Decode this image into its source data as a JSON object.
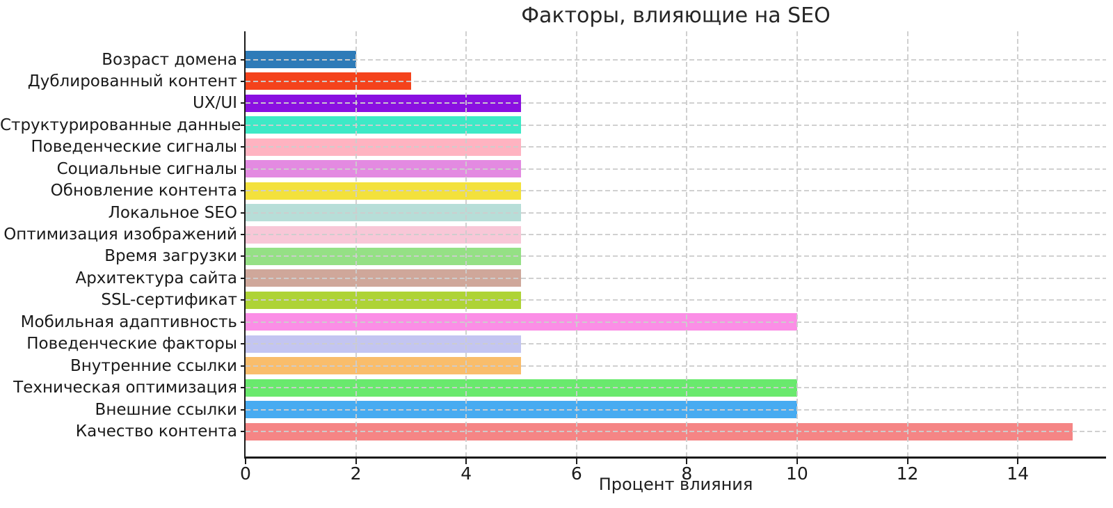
{
  "figure": {
    "title": "Факторы, влияющие на SEO",
    "xlabel": "Процент влияния"
  },
  "chart_data": {
    "type": "bar",
    "orientation": "horizontal",
    "title": "Факторы, влияющие на SEO",
    "xlabel": "Процент влияния",
    "ylabel": "",
    "legend": "none",
    "grid": {
      "x": true,
      "y": true,
      "style": "dashed",
      "color": "#cdcdcd",
      "drawn_above_bars": true
    },
    "xticks": [
      0,
      2,
      4,
      6,
      8,
      10,
      12,
      14
    ],
    "xlim": [
      0,
      15.6
    ],
    "categories_top_to_bottom": [
      "Возраст домена",
      "Дублированный контент",
      "UX/UI",
      "Структурированные данные",
      "Поведенческие сигналы",
      "Социальные сигналы",
      "Обновление контента",
      "Локальное SEO",
      "Оптимизация изображений",
      "Время загрузки",
      "Архитектура сайта",
      "SSL-сертификат",
      "Мобильная адаптивность",
      "Поведенческие факторы",
      "Внутренние ссылки",
      "Техническая оптимизация",
      "Внешние ссылки",
      "Качество контента"
    ],
    "values": [
      2,
      3,
      5,
      5,
      5,
      5,
      5,
      5,
      5,
      5,
      5,
      5,
      10,
      5,
      5,
      10,
      10,
      15
    ],
    "bar_colors": [
      "#2e7bb8",
      "#f4431c",
      "#8a10e0",
      "#3de9c6",
      "#ffb3c1",
      "#e38ae1",
      "#f3e13c",
      "#b7ded8",
      "#f8c7d7",
      "#95e085",
      "#cfa79a",
      "#aed336",
      "#fb8ee6",
      "#c3c5f1",
      "#f9bd6b",
      "#69e96d",
      "#47abf1",
      "#f58585"
    ]
  },
  "colors": {
    "background": "#ffffff",
    "axis": "#1a1a1a",
    "text": "#1f1f1f",
    "grid": "#cdcdcd"
  }
}
